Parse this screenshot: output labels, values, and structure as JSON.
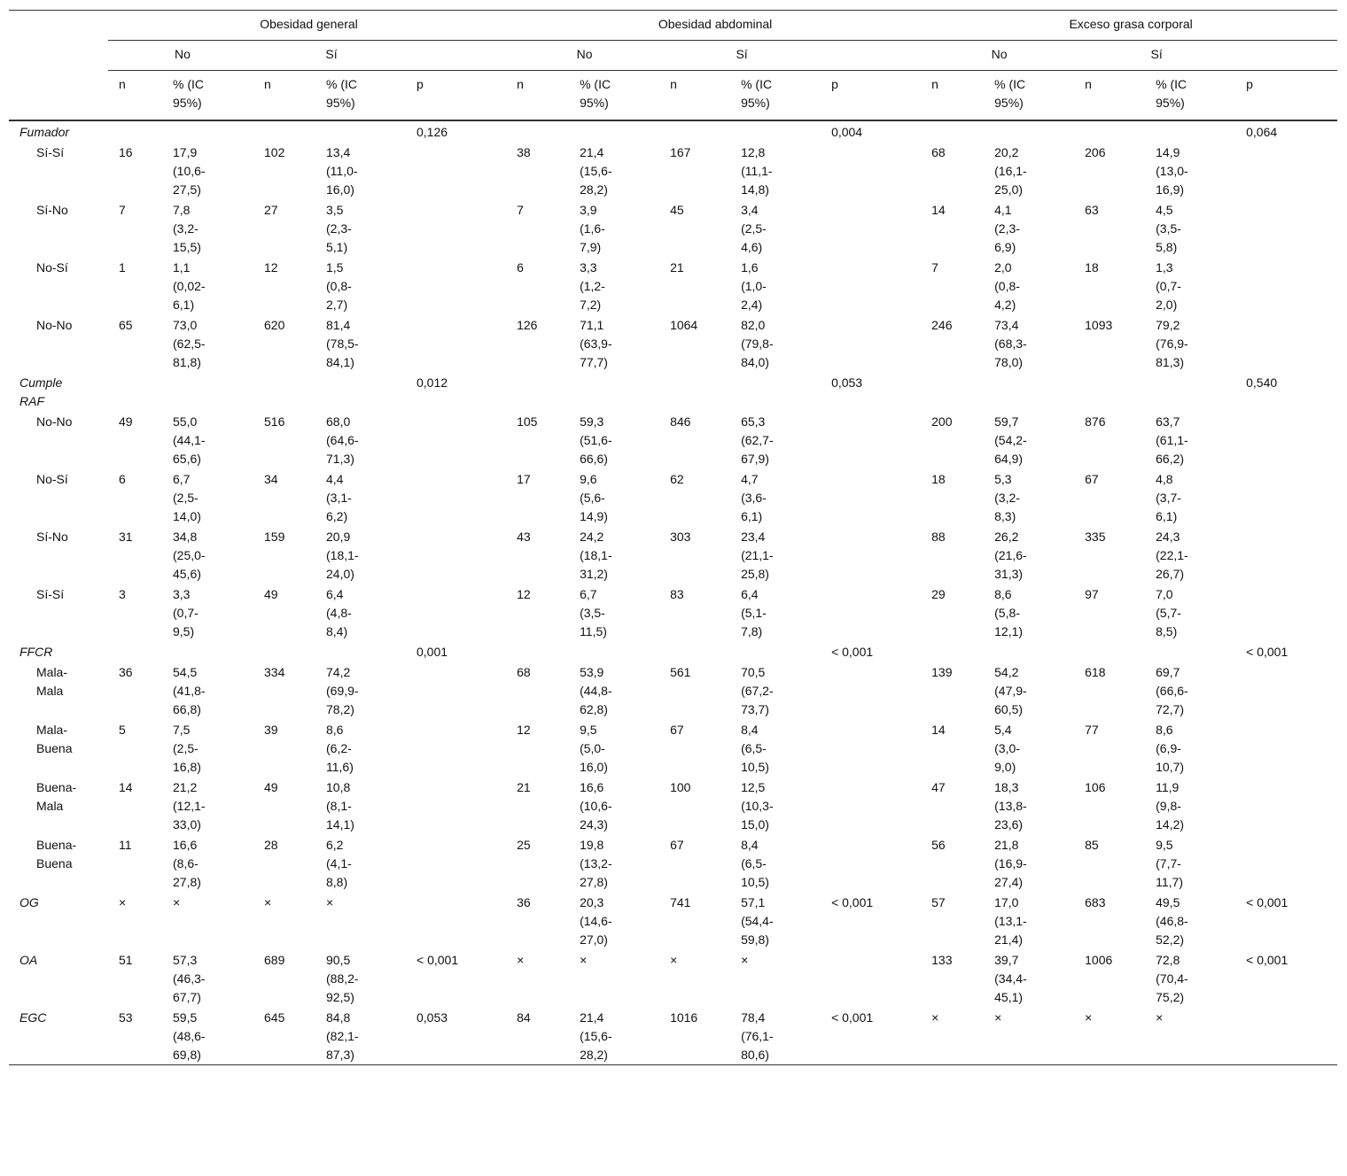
{
  "header": {
    "groups": [
      "Obesidad general",
      "Obesidad abdominal",
      "Exceso grasa corporal"
    ],
    "answers": [
      "No",
      "Sí"
    ],
    "columns": [
      "n",
      "% (IC 95%)",
      "p"
    ]
  },
  "sections": [
    {
      "label": "Fumador",
      "p": [
        "0,126",
        "0,004",
        "0,064"
      ],
      "rows": [
        {
          "label": "Sí-Sí",
          "groups": [
            [
              "16",
              "17,9",
              "(10,6-27,5)",
              "102",
              "13,4",
              "(11,0-16,0)"
            ],
            [
              "38",
              "21,4",
              "(15,6-28,2)",
              "167",
              "12,8",
              "(11,1-14,8)"
            ],
            [
              "68",
              "20,2",
              "(16,1-25,0)",
              "206",
              "14,9",
              "(13,0-16,9)"
            ]
          ]
        },
        {
          "label": "Sí-No",
          "groups": [
            [
              "7",
              "7,8",
              "(3,2-15,5)",
              "27",
              "3,5",
              "(2,3-5,1)"
            ],
            [
              "7",
              "3,9",
              "(1,6-7,9)",
              "45",
              "3,4",
              "(2,5-4,6)"
            ],
            [
              "14",
              "4,1",
              "(2,3-6,9)",
              "63",
              "4,5",
              "(3,5-5,8)"
            ]
          ]
        },
        {
          "label": "No-Sí",
          "groups": [
            [
              "1",
              "1,1",
              "(0,02-6,1)",
              "12",
              "1,5",
              "(0,8-2,7)"
            ],
            [
              "6",
              "3,3",
              "(1,2-7,2)",
              "21",
              "1,6",
              "(1,0-2,4)"
            ],
            [
              "7",
              "2,0",
              "(0,8-4,2)",
              "18",
              "1,3",
              "(0,7-2,0)"
            ]
          ]
        },
        {
          "label": "No-No",
          "groups": [
            [
              "65",
              "73,0",
              "(62,5-81,8)",
              "620",
              "81,4",
              "(78,5-84,1)"
            ],
            [
              "126",
              "71,1",
              "(63,9-77,7)",
              "1064",
              "82,0",
              "(79,8-84,0)"
            ],
            [
              "246",
              "73,4",
              "(68,3-78,0)",
              "1093",
              "79,2",
              "(76,9-81,3)"
            ]
          ]
        }
      ]
    },
    {
      "label": "Cumple RAF",
      "p": [
        "0,012",
        "0,053",
        "0,540"
      ],
      "rows": [
        {
          "label": "No-No",
          "groups": [
            [
              "49",
              "55,0",
              "(44,1-65,6)",
              "516",
              "68,0",
              "(64,6-71,3)"
            ],
            [
              "105",
              "59,3",
              "(51,6-66,6)",
              "846",
              "65,3",
              "(62,7-67,9)"
            ],
            [
              "200",
              "59,7",
              "(54,2-64,9)",
              "876",
              "63,7",
              "(61,1-66,2)"
            ]
          ]
        },
        {
          "label": "No-Sí",
          "groups": [
            [
              "6",
              "6,7",
              "(2,5-14,0)",
              "34",
              "4,4",
              "(3,1-6,2)"
            ],
            [
              "17",
              "9,6",
              "(5,6-14,9)",
              "62",
              "4,7",
              "(3,6-6,1)"
            ],
            [
              "18",
              "5,3",
              "(3,2-8,3)",
              "67",
              "4,8",
              "(3,7-6,1)"
            ]
          ]
        },
        {
          "label": "Sí-No",
          "groups": [
            [
              "31",
              "34,8",
              "(25,0-45,6)",
              "159",
              "20,9",
              "(18,1-24,0)"
            ],
            [
              "43",
              "24,2",
              "(18,1-31,2)",
              "303",
              "23,4",
              "(21,1-25,8)"
            ],
            [
              "88",
              "26,2",
              "(21,6-31,3)",
              "335",
              "24,3",
              "(22,1-26,7)"
            ]
          ]
        },
        {
          "label": "Sí-Sí",
          "groups": [
            [
              "3",
              "3,3",
              "(0,7-9,5)",
              "49",
              "6,4",
              "(4,8-8,4)"
            ],
            [
              "12",
              "6,7",
              "(3,5-11,5)",
              "83",
              "6,4",
              "(5,1-7,8)"
            ],
            [
              "29",
              "8,6",
              "(5,8-12,1)",
              "97",
              "7,0",
              "(5,7-8,5)"
            ]
          ]
        }
      ]
    },
    {
      "label": "FFCR",
      "p": [
        "0,001",
        "< 0,001",
        "< 0,001"
      ],
      "rows": [
        {
          "label": "Mala-Mala",
          "groups": [
            [
              "36",
              "54,5",
              "(41,8-66,8)",
              "334",
              "74,2",
              "(69,9-78,2)"
            ],
            [
              "68",
              "53,9",
              "(44,8-62,8)",
              "561",
              "70,5",
              "(67,2-73,7)"
            ],
            [
              "139",
              "54,2",
              "(47,9-60,5)",
              "618",
              "69,7",
              "(66,6-72,7)"
            ]
          ]
        },
        {
          "label": "Mala-Buena",
          "groups": [
            [
              "5",
              "7,5",
              "(2,5-16,8)",
              "39",
              "8,6",
              "(6,2-11,6)"
            ],
            [
              "12",
              "9,5",
              "(5,0-16,0)",
              "67",
              "8,4",
              "(6,5-10,5)"
            ],
            [
              "14",
              "5,4",
              "(3,0-9,0)",
              "77",
              "8,6",
              "(6,9-10,7)"
            ]
          ]
        },
        {
          "label": "Buena-Mala",
          "groups": [
            [
              "14",
              "21,2",
              "(12,1-33,0)",
              "49",
              "10,8",
              "(8,1-14,1)"
            ],
            [
              "21",
              "16,6",
              "(10,6-24,3)",
              "100",
              "12,5",
              "(10,3-15,0)"
            ],
            [
              "47",
              "18,3",
              "(13,8-23,6)",
              "106",
              "11,9",
              "(9,8-14,2)"
            ]
          ]
        },
        {
          "label": "Buena-Buena",
          "groups": [
            [
              "11",
              "16,6",
              "(8,6-27,8)",
              "28",
              "6,2",
              "(4,1-8,8)"
            ],
            [
              "25",
              "19,8",
              "(13,2-27,8)",
              "67",
              "8,4",
              "(6,5-10,5)"
            ],
            [
              "56",
              "21,8",
              "(16,9-27,4)",
              "85",
              "9,5",
              "(7,7-11,7)"
            ]
          ]
        }
      ]
    },
    {
      "label": "OG",
      "p": [
        null,
        "< 0,001",
        "< 0,001"
      ],
      "groups": [
        [
          "×",
          "×",
          "×",
          "×"
        ],
        [
          "36",
          "20,3",
          "(14,6-27,0)",
          "741",
          "57,1",
          "(54,4-59,8)"
        ],
        [
          "57",
          "17,0",
          "(13,1-21,4)",
          "683",
          "49,5",
          "(46,8-52,2)"
        ]
      ]
    },
    {
      "label": "OA",
      "p": [
        "< 0,001",
        null,
        "< 0,001"
      ],
      "groups": [
        [
          "51",
          "57,3",
          "(46,3-67,7)",
          "689",
          "90,5",
          "(88,2-92,5)"
        ],
        [
          "×",
          "×",
          "×",
          "×"
        ],
        [
          "133",
          "39,7",
          "(34,4-45,1)",
          "1006",
          "72,8",
          "(70,4-75,2)"
        ]
      ]
    },
    {
      "label": "EGC",
      "p": [
        "0,053",
        "< 0,001",
        null
      ],
      "groups": [
        [
          "53",
          "59,5",
          "(48,6-69,8)",
          "645",
          "84,8",
          "(82,1-87,3)"
        ],
        [
          "84",
          "21,4",
          "(15,6-28,2)",
          "1016",
          "78,4",
          "(76,1-80,6)"
        ],
        [
          "×",
          "×",
          "×",
          "×"
        ]
      ]
    }
  ]
}
